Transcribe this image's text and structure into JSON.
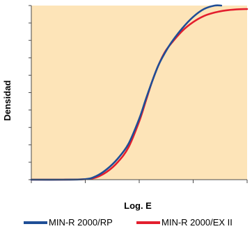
{
  "chart_data": {
    "type": "line",
    "title": "",
    "xlabel": "Log. E",
    "ylabel": "Densidad",
    "xlim": [
      0,
      10
    ],
    "ylim": [
      0,
      10
    ],
    "x_ticks_count": 5,
    "y_ticks_count": 11,
    "tick_labels_shown": false,
    "grid": false,
    "background_color": "#fde4b8",
    "legend_placement": "bottom",
    "series": [
      {
        "name": "MIN-R 2000/RP",
        "color": "#1f4e96",
        "x": [
          0,
          1.5,
          2.5,
          3.0,
          3.5,
          4.0,
          4.5,
          5.0,
          5.3,
          5.6,
          5.9,
          6.2,
          6.5,
          7.0,
          7.5,
          8.0,
          8.5,
          8.8
        ],
        "y": [
          0,
          0,
          0.03,
          0.2,
          0.6,
          1.2,
          2.05,
          3.5,
          4.6,
          5.65,
          6.6,
          7.3,
          7.9,
          8.7,
          9.35,
          9.8,
          10.0,
          10.0
        ]
      },
      {
        "name": "MIN-R 2000/EX II",
        "color": "#e31e2d",
        "x": [
          0,
          1.5,
          2.5,
          3.0,
          3.5,
          4.0,
          4.5,
          5.0,
          5.3,
          5.6,
          5.9,
          6.2,
          6.5,
          7.0,
          7.5,
          8.0,
          8.5,
          9.0,
          9.5,
          10.0
        ],
        "y": [
          0,
          0,
          0.03,
          0.13,
          0.45,
          1.0,
          1.85,
          3.35,
          4.5,
          5.65,
          6.6,
          7.35,
          7.85,
          8.55,
          9.05,
          9.4,
          9.6,
          9.72,
          9.78,
          9.8
        ]
      }
    ]
  }
}
